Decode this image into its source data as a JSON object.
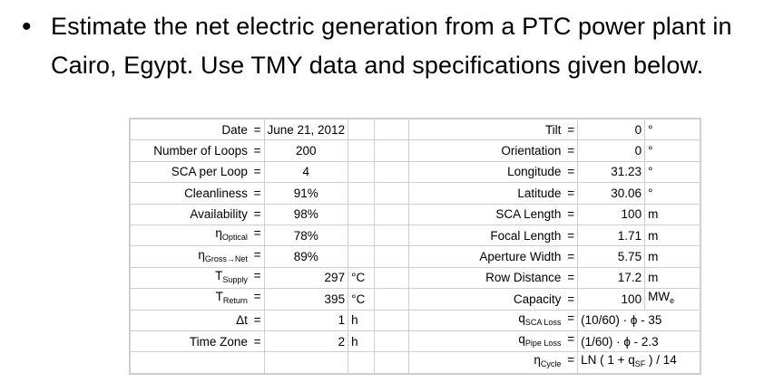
{
  "bullet": {
    "marker": "•",
    "text": "Estimate the net electric generation from a PTC  power plant in Cairo, Egypt. Use TMY data and specifications given below."
  },
  "table": {
    "rows": [
      {
        "l_label": "Date",
        "l_sub": "",
        "l_eq": "=",
        "l_val": "June 21, 2012",
        "l_unit": "",
        "r_label": "Tilt",
        "r_sub": "",
        "r_eq": "=",
        "r_val": "0",
        "r_unit": "°"
      },
      {
        "l_label": "Number of Loops",
        "l_sub": "",
        "l_eq": "=",
        "l_val": "200",
        "l_unit": "",
        "r_label": "Orientation",
        "r_sub": "",
        "r_eq": "=",
        "r_val": "0",
        "r_unit": "°"
      },
      {
        "l_label": "SCA per Loop",
        "l_sub": "",
        "l_eq": "=",
        "l_val": "4",
        "l_unit": "",
        "r_label": "Longitude",
        "r_sub": "",
        "r_eq": "=",
        "r_val": "31.23",
        "r_unit": "°"
      },
      {
        "l_label": "Cleanliness",
        "l_sub": "",
        "l_eq": "=",
        "l_val": "91%",
        "l_unit": "",
        "r_label": "Latitude",
        "r_sub": "",
        "r_eq": "=",
        "r_val": "30.06",
        "r_unit": "°"
      },
      {
        "l_label": "Availability",
        "l_sub": "",
        "l_eq": "=",
        "l_val": "98%",
        "l_unit": "",
        "r_label": "SCA Length",
        "r_sub": "",
        "r_eq": "=",
        "r_val": "100",
        "r_unit": "m"
      },
      {
        "l_label": "η",
        "l_sub": "Optical",
        "l_eq": "=",
        "l_val": "78%",
        "l_unit": "",
        "r_label": "Focal Length",
        "r_sub": "",
        "r_eq": "=",
        "r_val": "1.71",
        "r_unit": "m"
      },
      {
        "l_label": "η",
        "l_sub": "Gross→Net",
        "l_eq": "=",
        "l_val": "89%",
        "l_unit": "",
        "r_label": "Aperture Width",
        "r_sub": "",
        "r_eq": "=",
        "r_val": "5.75",
        "r_unit": "m"
      },
      {
        "l_label": "T",
        "l_sub": "Supply",
        "l_eq": "=",
        "l_val": "297",
        "l_unit": "°C",
        "r_label": "Row Distance",
        "r_sub": "",
        "r_eq": "=",
        "r_val": "17.2",
        "r_unit": "m"
      },
      {
        "l_label": "T",
        "l_sub": "Return",
        "l_eq": "=",
        "l_val": "395",
        "l_unit": "°C",
        "r_label": "Capacity",
        "r_sub": "",
        "r_eq": "=",
        "r_val": "100",
        "r_unit": "MWe"
      },
      {
        "l_label": "Δt",
        "l_sub": "",
        "l_eq": "=",
        "l_val": "1",
        "l_unit": "h",
        "r_label": "q",
        "r_sub": "SCA Loss",
        "r_eq": "=",
        "r_val": "(10/60) · ϕ - 35",
        "r_unit": ""
      },
      {
        "l_label": "Time Zone",
        "l_sub": "",
        "l_eq": "=",
        "l_val": "2",
        "l_unit": "h",
        "r_label": "q",
        "r_sub": "Pipe Loss",
        "r_eq": "=",
        "r_val": "(1/60) · ϕ - 2.3",
        "r_unit": ""
      },
      {
        "l_label": "",
        "l_sub": "",
        "l_eq": "",
        "l_val": "",
        "l_unit": "",
        "r_label": "η",
        "r_sub": "Cycle",
        "r_eq": "=",
        "r_val": "LN ( 1 + q",
        "r_val_sub": "SF",
        "r_val_tail": " ) / 14",
        "r_unit": ""
      }
    ]
  }
}
